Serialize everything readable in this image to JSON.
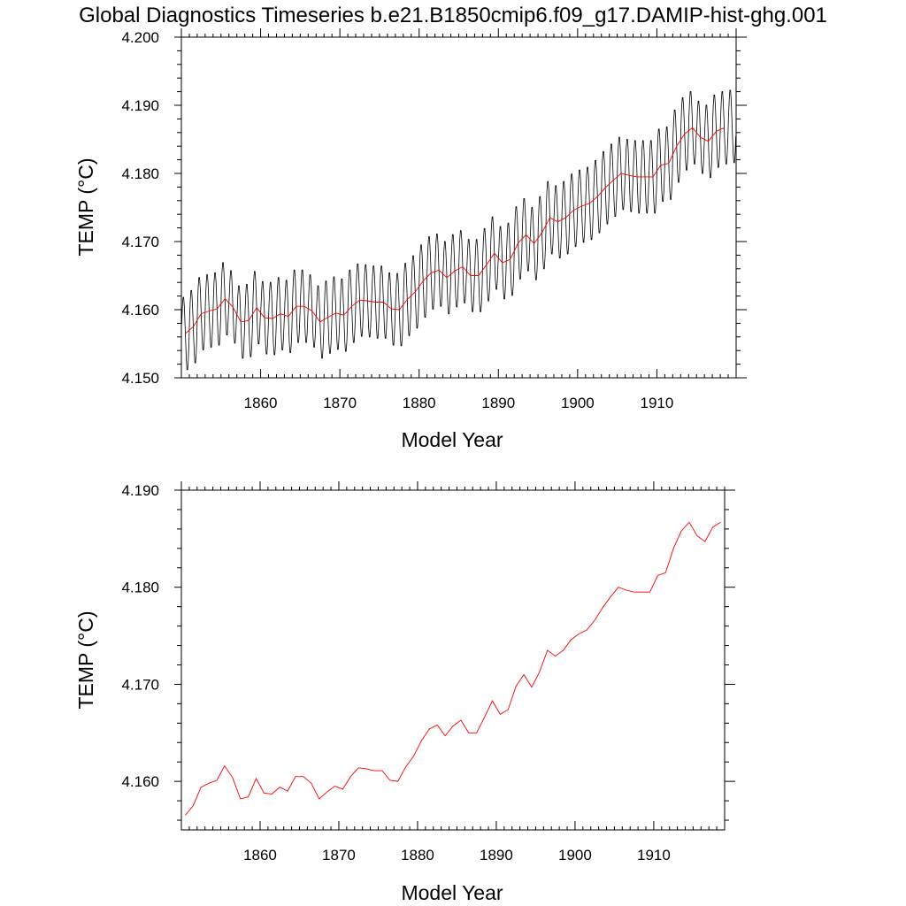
{
  "title": "Global Diagnostics Timeseries b.e21.B1850cmip6.f09_g17.DAMIP-hist-ghg.001",
  "colors": {
    "monthly": "#000000",
    "annual": "#ff0000",
    "axes": "#000000"
  },
  "chart_data": [
    {
      "type": "line",
      "xlabel": "Model Year",
      "ylabel": "TEMP (°C)",
      "xlim": [
        1850,
        1920
      ],
      "ylim": [
        4.15,
        4.2
      ],
      "xticks": [
        "1860",
        "1870",
        "1880",
        "1890",
        "1900",
        "1910"
      ],
      "yticks": [
        "4.150",
        "4.160",
        "4.170",
        "4.180",
        "4.190",
        "4.200"
      ],
      "series": [
        {
          "role": "monthly",
          "seasonal_amplitude": 0.0055,
          "x": [
            1850.5,
            1851.5,
            1852.5,
            1853.5,
            1854.5,
            1855.5,
            1856.5,
            1857.5,
            1858.5,
            1859.5,
            1860.5,
            1861.5,
            1862.5,
            1863.5,
            1864.5,
            1865.5,
            1866.5,
            1867.5,
            1868.5,
            1869.5,
            1870.5,
            1871.5,
            1872.5,
            1873.5,
            1874.5,
            1875.5,
            1876.5,
            1877.5,
            1878.5,
            1879.5,
            1880.5,
            1881.5,
            1882.5,
            1883.5,
            1884.5,
            1885.5,
            1886.5,
            1887.5,
            1888.5,
            1889.5,
            1890.5,
            1891.5,
            1892.5,
            1893.5,
            1894.5,
            1895.5,
            1896.5,
            1897.5,
            1898.5,
            1899.5,
            1900.5,
            1901.5,
            1902.5,
            1903.5,
            1904.5,
            1905.5,
            1906.5,
            1907.5,
            1908.5,
            1909.5,
            1910.5,
            1911.5,
            1912.5,
            1913.5,
            1914.5,
            1915.5,
            1916.5,
            1917.5,
            1918.5,
            1919.5
          ],
          "values": [
            4.1565,
            4.1575,
            4.1594,
            4.1598,
            4.1601,
            4.1616,
            4.1604,
            4.1582,
            4.1584,
            4.1603,
            4.1588,
            4.1587,
            4.1594,
            4.159,
            4.1605,
            4.1605,
            4.1598,
            4.1582,
            4.1589,
            4.1595,
            4.1592,
            4.1605,
            4.1614,
            4.1613,
            4.1611,
            4.1611,
            4.1601,
            4.16,
            4.1615,
            4.1626,
            4.1642,
            4.1654,
            4.1658,
            4.1647,
            4.1657,
            4.1663,
            4.165,
            4.165,
            4.1666,
            4.1683,
            4.1669,
            4.1674,
            4.1698,
            4.171,
            4.1697,
            4.1713,
            4.1735,
            4.1729,
            4.1735,
            4.1746,
            4.1752,
            4.1756,
            4.1766,
            4.1779,
            4.179,
            4.18,
            4.1797,
            4.1795,
            4.1795,
            4.1795,
            4.1812,
            4.1815,
            4.184,
            4.1858,
            4.1867,
            4.1853,
            4.1847,
            4.1862,
            4.1867,
            4.1869
          ]
        },
        {
          "role": "annual",
          "x": [
            1850.5,
            1851.5,
            1852.5,
            1853.5,
            1854.5,
            1855.5,
            1856.5,
            1857.5,
            1858.5,
            1859.5,
            1860.5,
            1861.5,
            1862.5,
            1863.5,
            1864.5,
            1865.5,
            1866.5,
            1867.5,
            1868.5,
            1869.5,
            1870.5,
            1871.5,
            1872.5,
            1873.5,
            1874.5,
            1875.5,
            1876.5,
            1877.5,
            1878.5,
            1879.5,
            1880.5,
            1881.5,
            1882.5,
            1883.5,
            1884.5,
            1885.5,
            1886.5,
            1887.5,
            1888.5,
            1889.5,
            1890.5,
            1891.5,
            1892.5,
            1893.5,
            1894.5,
            1895.5,
            1896.5,
            1897.5,
            1898.5,
            1899.5,
            1900.5,
            1901.5,
            1902.5,
            1903.5,
            1904.5,
            1905.5,
            1906.5,
            1907.5,
            1908.5,
            1909.5,
            1910.5,
            1911.5,
            1912.5,
            1913.5,
            1914.5,
            1915.5,
            1916.5,
            1917.5,
            1918.5
          ],
          "values": [
            4.1565,
            4.1575,
            4.1594,
            4.1598,
            4.1601,
            4.1616,
            4.1604,
            4.1582,
            4.1584,
            4.1603,
            4.1588,
            4.1587,
            4.1594,
            4.159,
            4.1605,
            4.1605,
            4.1598,
            4.1582,
            4.1589,
            4.1595,
            4.1592,
            4.1605,
            4.1614,
            4.1613,
            4.1611,
            4.1611,
            4.1601,
            4.16,
            4.1615,
            4.1626,
            4.1642,
            4.1654,
            4.1658,
            4.1647,
            4.1657,
            4.1663,
            4.165,
            4.165,
            4.1666,
            4.1683,
            4.1669,
            4.1674,
            4.1698,
            4.171,
            4.1697,
            4.1713,
            4.1735,
            4.1729,
            4.1735,
            4.1746,
            4.1752,
            4.1756,
            4.1766,
            4.1779,
            4.179,
            4.18,
            4.1797,
            4.1795,
            4.1795,
            4.1795,
            4.1812,
            4.1815,
            4.184,
            4.1858,
            4.1867,
            4.1853,
            4.1847,
            4.1862,
            4.1867
          ]
        }
      ]
    },
    {
      "type": "line",
      "xlabel": "Model Year",
      "ylabel": "TEMP (°C)",
      "xlim": [
        1850,
        1919
      ],
      "ylim": [
        4.155,
        4.19
      ],
      "xticks": [
        "1860",
        "1870",
        "1880",
        "1890",
        "1900",
        "1910"
      ],
      "yticks": [
        "4.160",
        "4.170",
        "4.180",
        "4.190"
      ],
      "series": [
        {
          "role": "annual",
          "x": [
            1850.5,
            1851.5,
            1852.5,
            1853.5,
            1854.5,
            1855.5,
            1856.5,
            1857.5,
            1858.5,
            1859.5,
            1860.5,
            1861.5,
            1862.5,
            1863.5,
            1864.5,
            1865.5,
            1866.5,
            1867.5,
            1868.5,
            1869.5,
            1870.5,
            1871.5,
            1872.5,
            1873.5,
            1874.5,
            1875.5,
            1876.5,
            1877.5,
            1878.5,
            1879.5,
            1880.5,
            1881.5,
            1882.5,
            1883.5,
            1884.5,
            1885.5,
            1886.5,
            1887.5,
            1888.5,
            1889.5,
            1890.5,
            1891.5,
            1892.5,
            1893.5,
            1894.5,
            1895.5,
            1896.5,
            1897.5,
            1898.5,
            1899.5,
            1900.5,
            1901.5,
            1902.5,
            1903.5,
            1904.5,
            1905.5,
            1906.5,
            1907.5,
            1908.5,
            1909.5,
            1910.5,
            1911.5,
            1912.5,
            1913.5,
            1914.5,
            1915.5,
            1916.5,
            1917.5,
            1918.5
          ],
          "values": [
            4.1565,
            4.1575,
            4.1594,
            4.1598,
            4.1601,
            4.1616,
            4.1604,
            4.1582,
            4.1584,
            4.1603,
            4.1588,
            4.1587,
            4.1594,
            4.159,
            4.1605,
            4.1605,
            4.1598,
            4.1582,
            4.1589,
            4.1595,
            4.1592,
            4.1605,
            4.1614,
            4.1613,
            4.1611,
            4.1611,
            4.1601,
            4.16,
            4.1615,
            4.1626,
            4.1642,
            4.1654,
            4.1658,
            4.1647,
            4.1657,
            4.1663,
            4.165,
            4.165,
            4.1666,
            4.1683,
            4.1669,
            4.1674,
            4.1698,
            4.171,
            4.1697,
            4.1713,
            4.1735,
            4.1729,
            4.1735,
            4.1746,
            4.1752,
            4.1756,
            4.1766,
            4.1779,
            4.179,
            4.18,
            4.1797,
            4.1795,
            4.1795,
            4.1795,
            4.1812,
            4.1815,
            4.184,
            4.1858,
            4.1867,
            4.1853,
            4.1847,
            4.1862,
            4.1867
          ]
        }
      ]
    }
  ]
}
